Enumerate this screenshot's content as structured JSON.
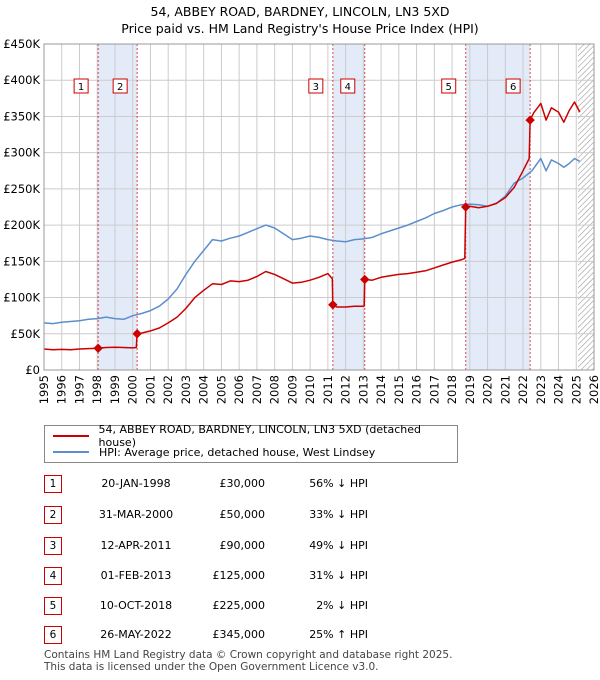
{
  "header": {
    "title": "54, ABBEY ROAD, BARDNEY, LINCOLN, LN3 5XD",
    "subtitle": "Price paid vs. HM Land Registry's House Price Index (HPI)"
  },
  "legend": {
    "property_label": "54, ABBEY ROAD, BARDNEY, LINCOLN, LN3 5XD (detached house)",
    "hpi_label": "HPI: Average price, detached house, West Lindsey",
    "property_color": "#cc0000",
    "hpi_color": "#5b8fcc"
  },
  "sales": [
    {
      "num": "1",
      "date": "20-JAN-1998",
      "price": "£30,000",
      "hpi": "56% ↓ HPI"
    },
    {
      "num": "2",
      "date": "31-MAR-2000",
      "price": "£50,000",
      "hpi": "33% ↓ HPI"
    },
    {
      "num": "3",
      "date": "12-APR-2011",
      "price": "£90,000",
      "hpi": "49% ↓ HPI"
    },
    {
      "num": "4",
      "date": "01-FEB-2013",
      "price": "£125,000",
      "hpi": "31% ↓ HPI"
    },
    {
      "num": "5",
      "date": "10-OCT-2018",
      "price": "£225,000",
      "hpi": "2% ↓ HPI"
    },
    {
      "num": "6",
      "date": "26-MAY-2022",
      "price": "£345,000",
      "hpi": "25% ↑ HPI"
    }
  ],
  "footer": {
    "line1": "Contains HM Land Registry data © Crown copyright and database right 2025.",
    "line2": "This data is licensed under the Open Government Licence v3.0."
  },
  "chart_data": {
    "type": "line",
    "title": "54, ABBEY ROAD, BARDNEY, LINCOLN, LN3 5XD",
    "subtitle": "Price paid vs. HM Land Registry's House Price Index (HPI)",
    "xlabel": "",
    "ylabel": "",
    "xlim": [
      1995,
      2026
    ],
    "ylim": [
      0,
      450000
    ],
    "x_ticks": [
      "1995",
      "1996",
      "1997",
      "1998",
      "1999",
      "2000",
      "2001",
      "2002",
      "2003",
      "2004",
      "2005",
      "2006",
      "2007",
      "2008",
      "2009",
      "2010",
      "2011",
      "2012",
      "2013",
      "2014",
      "2015",
      "2016",
      "2017",
      "2018",
      "2019",
      "2020",
      "2021",
      "2022",
      "2023",
      "2024",
      "2025",
      "2026"
    ],
    "y_ticks": [
      {
        "value": 0,
        "label": "£0"
      },
      {
        "value": 50000,
        "label": "£50K"
      },
      {
        "value": 100000,
        "label": "£100K"
      },
      {
        "value": 150000,
        "label": "£150K"
      },
      {
        "value": 200000,
        "label": "£200K"
      },
      {
        "value": 250000,
        "label": "£250K"
      },
      {
        "value": 300000,
        "label": "£300K"
      },
      {
        "value": 350000,
        "label": "£350K"
      },
      {
        "value": 400000,
        "label": "£400K"
      },
      {
        "value": 450000,
        "label": "£450K"
      }
    ],
    "grid": true,
    "shaded_periods": [
      [
        1998.05,
        2000.25
      ],
      [
        2011.28,
        2013.08
      ],
      [
        2018.77,
        2022.4
      ]
    ],
    "future_hatch_start": 2025.1,
    "sale_markers": [
      {
        "label": "1",
        "x": 1998.05,
        "y": 30000
      },
      {
        "label": "2",
        "x": 2000.25,
        "y": 50000
      },
      {
        "label": "3",
        "x": 2011.28,
        "y": 90000
      },
      {
        "label": "4",
        "x": 2013.08,
        "y": 125000
      },
      {
        "label": "5",
        "x": 2018.77,
        "y": 225000
      },
      {
        "label": "6",
        "x": 2022.4,
        "y": 345000
      }
    ],
    "series": [
      {
        "name": "54, ABBEY ROAD, BARDNEY, LINCOLN, LN3 5XD (detached house)",
        "color": "#cc0000",
        "x": [
          1995.0,
          1995.5,
          1996.0,
          1996.5,
          1997.0,
          1997.5,
          1998.0,
          1998.05,
          1998.5,
          1999.0,
          1999.5,
          2000.0,
          2000.2,
          2000.25,
          2000.5,
          2001.0,
          2001.5,
          2002.0,
          2002.5,
          2003.0,
          2003.5,
          2004.0,
          2004.5,
          2005.0,
          2005.5,
          2006.0,
          2006.5,
          2007.0,
          2007.5,
          2008.0,
          2008.5,
          2009.0,
          2009.5,
          2010.0,
          2010.5,
          2011.0,
          2011.25,
          2011.28,
          2011.5,
          2012.0,
          2012.5,
          2013.0,
          2013.05,
          2013.08,
          2013.5,
          2014.0,
          2014.5,
          2015.0,
          2015.5,
          2016.0,
          2016.5,
          2017.0,
          2017.5,
          2018.0,
          2018.5,
          2018.72,
          2018.77,
          2019.0,
          2019.5,
          2020.0,
          2020.5,
          2021.0,
          2021.5,
          2022.0,
          2022.35,
          2022.4,
          2022.6,
          2023.0,
          2023.3,
          2023.6,
          2024.0,
          2024.3,
          2024.6,
          2024.9,
          2025.2
        ],
        "values": [
          29000,
          28000,
          28500,
          28000,
          29000,
          29500,
          30000,
          30000,
          31000,
          31500,
          31000,
          30500,
          31000,
          50000,
          51000,
          54000,
          58000,
          65000,
          73000,
          85000,
          100000,
          110000,
          119000,
          118000,
          123000,
          122000,
          124000,
          129000,
          136000,
          132000,
          126000,
          120000,
          121000,
          124000,
          128000,
          133000,
          126000,
          90000,
          87000,
          87000,
          88000,
          88000,
          88500,
          125000,
          124000,
          128000,
          130000,
          132000,
          133000,
          135000,
          137000,
          141000,
          145000,
          149000,
          152000,
          154000,
          225000,
          226000,
          224000,
          226000,
          230000,
          238000,
          252000,
          275000,
          292000,
          345000,
          355000,
          368000,
          345000,
          362000,
          356000,
          342000,
          358000,
          370000,
          356000
        ]
      },
      {
        "name": "HPI: Average price, detached house, West Lindsey",
        "color": "#5b8fcc",
        "x": [
          1995.0,
          1995.5,
          1996.0,
          1996.5,
          1997.0,
          1997.5,
          1998.0,
          1998.5,
          1999.0,
          1999.5,
          2000.0,
          2000.5,
          2001.0,
          2001.5,
          2002.0,
          2002.5,
          2003.0,
          2003.5,
          2004.0,
          2004.5,
          2005.0,
          2005.5,
          2006.0,
          2006.5,
          2007.0,
          2007.5,
          2008.0,
          2008.5,
          2009.0,
          2009.5,
          2010.0,
          2010.5,
          2011.0,
          2011.5,
          2012.0,
          2012.5,
          2013.0,
          2013.5,
          2014.0,
          2014.5,
          2015.0,
          2015.5,
          2016.0,
          2016.5,
          2017.0,
          2017.5,
          2018.0,
          2018.5,
          2019.0,
          2019.5,
          2020.0,
          2020.5,
          2021.0,
          2021.5,
          2022.0,
          2022.5,
          2023.0,
          2023.3,
          2023.6,
          2024.0,
          2024.3,
          2024.6,
          2024.9,
          2025.2
        ],
        "values": [
          65000,
          64000,
          66000,
          67000,
          68000,
          70000,
          71000,
          73000,
          71000,
          70000,
          75000,
          78000,
          82000,
          88000,
          98000,
          112000,
          132000,
          150000,
          165000,
          180000,
          178000,
          182000,
          185000,
          190000,
          195000,
          200000,
          196000,
          188000,
          180000,
          182000,
          185000,
          183000,
          180000,
          178000,
          177000,
          180000,
          181000,
          183000,
          188000,
          192000,
          196000,
          200000,
          205000,
          210000,
          216000,
          220000,
          225000,
          228000,
          229000,
          228000,
          226000,
          230000,
          240000,
          258000,
          265000,
          275000,
          292000,
          275000,
          290000,
          285000,
          280000,
          285000,
          292000,
          288000
        ]
      }
    ]
  }
}
